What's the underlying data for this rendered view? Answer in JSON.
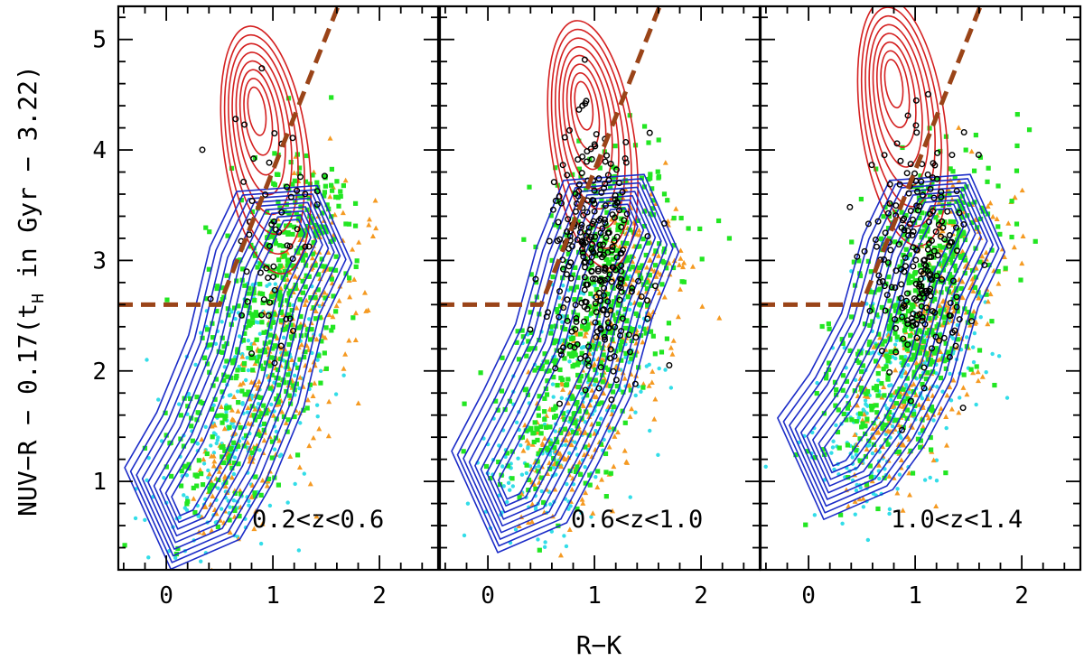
{
  "chart_data": {
    "type": "scatter",
    "xlabel": "R−K",
    "ylabel_main": "NUV−R − 0.17(t",
    "ylabel_sub": "H",
    "ylabel_end": " in Gyr − 3.22)",
    "xlim": [
      -0.45,
      2.55
    ],
    "ylim": [
      0.2,
      5.3
    ],
    "x_ticks": [
      0,
      1,
      2
    ],
    "y_ticks": [
      1,
      2,
      3,
      4,
      5
    ],
    "colors": {
      "quiescent_contours": "#d42020",
      "starforming_contours": "#1c2cc8",
      "green_points": "#22e622",
      "orange_points": "#f59a22",
      "cyan_points": "#33dde8",
      "black_points": "#000000",
      "selection_line": "#9a4418"
    },
    "selection_line": {
      "horizontal_y": 2.6,
      "knee_x": 0.5,
      "slope": 2.43
    },
    "panels": [
      {
        "label": "0.2<z<0.6",
        "red_peak": [
          0.85,
          4.35
        ],
        "blue_ridge": [
          [
            0.15,
            0.8
          ],
          [
            0.45,
            1.3
          ],
          [
            0.75,
            2.0
          ],
          [
            0.95,
            2.8
          ],
          [
            1.2,
            3.3
          ]
        ],
        "black_center": [
          1.0,
          3.3
        ],
        "black_count": 55
      },
      {
        "label": "0.6<z<1.0",
        "red_peak": [
          0.9,
          4.4
        ],
        "blue_ridge": [
          [
            0.2,
            0.95
          ],
          [
            0.5,
            1.5
          ],
          [
            0.8,
            2.1
          ],
          [
            1.0,
            2.8
          ],
          [
            1.25,
            3.4
          ]
        ],
        "black_center": [
          1.0,
          3.0
        ],
        "black_count": 260
      },
      {
        "label": "1.0<z<1.4",
        "red_peak": [
          0.8,
          4.6
        ],
        "blue_ridge": [
          [
            0.25,
            1.25
          ],
          [
            0.55,
            1.65
          ],
          [
            0.85,
            2.2
          ],
          [
            1.05,
            2.9
          ],
          [
            1.3,
            3.4
          ]
        ],
        "black_center": [
          1.05,
          3.0
        ],
        "black_count": 200
      }
    ]
  }
}
